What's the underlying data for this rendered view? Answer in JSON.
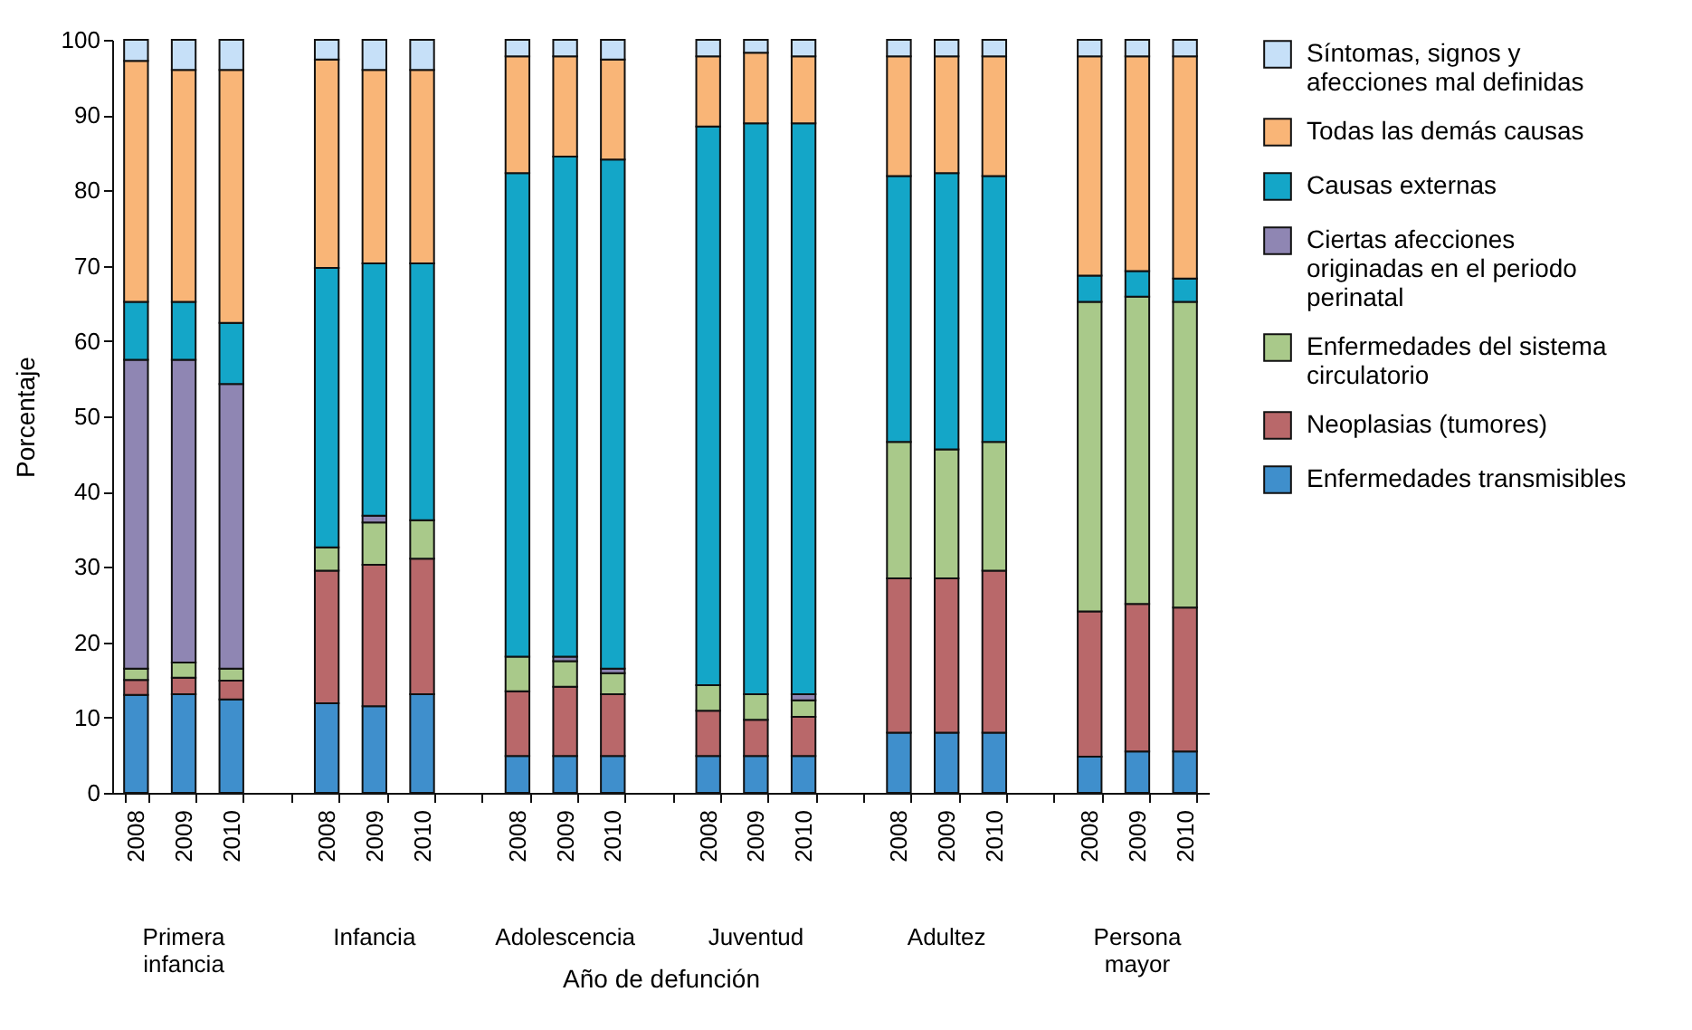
{
  "chart_data": {
    "type": "bar",
    "stacked": true,
    "xlabel": "Año de defunción",
    "ylabel": "Porcentaje",
    "categories": [
      "2008",
      "2009",
      "2010",
      null,
      "2008",
      "2009",
      "2010",
      null,
      "2008",
      "2009",
      "2010",
      null,
      "2008",
      "2009",
      "2010",
      null,
      "2008",
      "2009",
      "2010",
      null,
      "2008",
      "2009",
      "2010"
    ],
    "series": [
      {
        "name": "Enfermedades transmisibles",
        "color": "#3f8fcc",
        "values": [
          13,
          13.1,
          12.4,
          null,
          11.9,
          11.5,
          13.1,
          null,
          4.9,
          4.9,
          4.9,
          null,
          4.9,
          4.9,
          4.9,
          null,
          8,
          8,
          8,
          null,
          4.8,
          5.5,
          5.5
        ]
      },
      {
        "name": "Neoplasias (tumores)",
        "color": "#b9686a",
        "values": [
          2,
          2.2,
          2.5,
          null,
          17.6,
          18.8,
          18,
          null,
          8.6,
          9.2,
          8.2,
          null,
          6,
          4.8,
          5.2,
          null,
          20.5,
          20.5,
          21.5,
          null,
          19.3,
          19.6,
          19.1
        ]
      },
      {
        "name": "Enfermedades del sistema circulatorio",
        "color": "#a9c98a",
        "values": [
          1.5,
          2,
          1.6,
          null,
          3.1,
          5.6,
          5.1,
          null,
          4.6,
          3.4,
          2.8,
          null,
          3.4,
          3.4,
          2.2,
          null,
          18.1,
          17.1,
          17.1,
          null,
          41.1,
          40.8,
          40.6
        ]
      },
      {
        "name": "Ciertas afecciones originadas en el periodo perinatal",
        "color": "#8f86b3",
        "values": [
          41,
          40.2,
          37.8,
          null,
          null,
          0.9,
          null,
          null,
          null,
          0.6,
          0.6,
          null,
          null,
          null,
          0.8,
          null,
          null,
          null,
          null,
          null,
          null,
          null,
          null
        ]
      },
      {
        "name": "Causas externas",
        "color": "#14a6c8",
        "values": [
          7.7,
          7.7,
          8.1,
          null,
          37.1,
          33.5,
          34.1,
          null,
          64.2,
          66.4,
          67.6,
          null,
          74.2,
          75.8,
          75.8,
          null,
          35.3,
          36.7,
          35.3,
          null,
          3.5,
          3.4,
          3.1
        ]
      },
      {
        "name": "Todas las demás causas",
        "color": "#f9b577",
        "values": [
          32,
          30.8,
          33.6,
          null,
          27.7,
          25.7,
          25.7,
          null,
          15.5,
          13.3,
          13.3,
          null,
          9.3,
          9.4,
          8.9,
          null,
          15.9,
          15.5,
          15.9,
          null,
          29.1,
          28.5,
          29.5
        ]
      },
      {
        "name": "Síntomas, signos y afecciones mal definidas",
        "color": "#c6e0f8",
        "values": [
          2.8,
          4,
          4,
          null,
          2.6,
          4,
          4,
          null,
          2.2,
          2.2,
          2.6,
          null,
          2.2,
          1.7,
          2.2,
          null,
          2.2,
          2.2,
          2.2,
          null,
          2.2,
          2.2,
          2.2
        ]
      }
    ],
    "ylim": [
      0,
      100
    ],
    "yticks": [
      0,
      10,
      20,
      30,
      40,
      50,
      60,
      70,
      80,
      90,
      100
    ],
    "legend": "right",
    "annotations": [
      "Primera infancia",
      "Infancia",
      "Adolescencia",
      "Juventud",
      "Adultez",
      "Persona mayor"
    ]
  }
}
